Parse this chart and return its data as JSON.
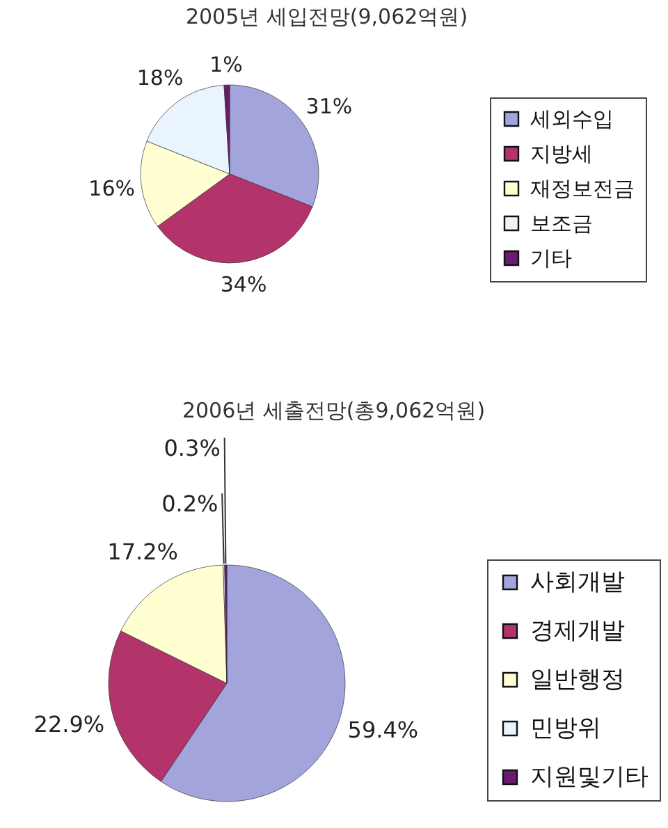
{
  "chart_data": [
    {
      "type": "pie",
      "title": "2005년 세입전망(9,062억원)",
      "categories": [
        "세외수입",
        "지방세",
        "재정보전금",
        "보조금",
        "기타"
      ],
      "values": [
        31,
        34,
        16,
        18,
        1
      ],
      "colors": [
        "#a4a4dc",
        "#b3336b",
        "#ffffd2",
        "#eaf4ff",
        "#6b1a6e"
      ],
      "value_labels": [
        "31%",
        "34%",
        "16%",
        "18%",
        "1%"
      ],
      "legend": "right"
    },
    {
      "type": "pie",
      "title": "2006년 세출전망(총9,062억원)",
      "categories": [
        "사회개발",
        "경제개발",
        "일반행정",
        "민방위",
        "지원및기타"
      ],
      "values": [
        59.4,
        22.9,
        17.2,
        0.2,
        0.3
      ],
      "colors": [
        "#a4a4dc",
        "#b3336b",
        "#ffffd2",
        "#eaf4ff",
        "#6b1a6e"
      ],
      "value_labels": [
        "59.4%",
        "22.9%",
        "17.2%",
        "0.2%",
        "0.3%"
      ],
      "legend": "right"
    }
  ]
}
